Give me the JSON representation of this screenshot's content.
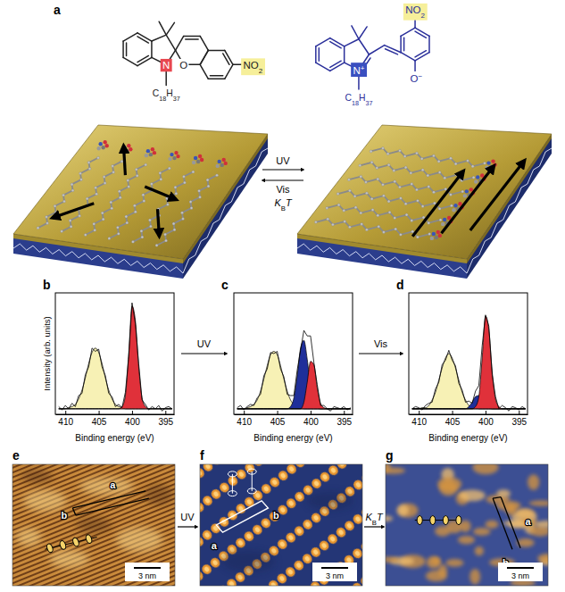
{
  "panel_labels": [
    "a",
    "b",
    "c",
    "d",
    "e",
    "f",
    "g"
  ],
  "scheme": {
    "closed_form": {
      "amine": [
        {
          "text": "N"
        }
      ],
      "oxygen": [
        {
          "text": "O"
        }
      ],
      "chain": [
        {
          "text": "C"
        },
        {
          "text": "18",
          "style": "sub"
        },
        {
          "text": "H"
        },
        {
          "text": "37",
          "style": "sub"
        }
      ],
      "nitro": [
        {
          "text": "NO"
        },
        {
          "text": "2",
          "style": "sub"
        }
      ]
    },
    "open_form": {
      "amine": [
        {
          "text": "N"
        },
        {
          "text": "+",
          "style": "sup"
        }
      ],
      "oxygen": [
        {
          "text": "O"
        },
        {
          "text": "−",
          "style": "sup"
        }
      ],
      "chain": [
        {
          "text": "C"
        },
        {
          "text": "18",
          "style": "sub"
        },
        {
          "text": "H"
        },
        {
          "text": "37",
          "style": "sub"
        }
      ],
      "nitro": [
        {
          "text": "NO"
        },
        {
          "text": "2",
          "style": "sub"
        }
      ]
    },
    "forward": [
      {
        "text": "UV"
      }
    ],
    "backward": [
      [
        {
          "text": "Vis"
        }
      ],
      [
        {
          "text": "K",
          "style": "italic"
        },
        {
          "text": "B",
          "style": "sub"
        },
        {
          "text": "T",
          "style": "italic"
        }
      ]
    ]
  },
  "spectra_steps": [
    [
      {
        "text": "UV"
      }
    ],
    [
      {
        "text": "Vis"
      }
    ]
  ],
  "chart_data": [
    {
      "type": "area",
      "xlabel": "Binding energy (eV)",
      "ylabel": "Intensity (arb. units)",
      "tick_labels": "x",
      "xlim": [
        411.5,
        393.7
      ],
      "xticks": [
        410,
        405,
        400,
        395
      ],
      "ylim": [
        -0.05,
        1.05
      ],
      "x": [
        411,
        410.5,
        410,
        409.5,
        409,
        408.5,
        408,
        407.5,
        407,
        406.5,
        406,
        405.5,
        405,
        404.5,
        404,
        403.5,
        403,
        402.5,
        402,
        401.5,
        401,
        400.5,
        400,
        399.5,
        399,
        398.5,
        398,
        397.5,
        397,
        396.5,
        396,
        395.5,
        395,
        394.5,
        394
      ],
      "series": [
        {
          "type": "area",
          "color": "#f7f1b5",
          "values": [
            0,
            0,
            0,
            0.01,
            0.02,
            0.04,
            0.09,
            0.17,
            0.28,
            0.41,
            0.51,
            0.55,
            0.51,
            0.41,
            0.28,
            0.17,
            0.09,
            0.04,
            0.02,
            0.01,
            0,
            0,
            0,
            0,
            0,
            0,
            0,
            0,
            0,
            0,
            0,
            0,
            0,
            0,
            0
          ]
        },
        {
          "type": "area",
          "color": "#e0313a",
          "values": [
            0,
            0,
            0,
            0,
            0,
            0,
            0,
            0,
            0,
            0,
            0,
            0,
            0,
            0,
            0,
            0,
            0,
            0,
            0,
            0.02,
            0.12,
            0.5,
            0.93,
            0.8,
            0.38,
            0.1,
            0.02,
            0,
            0,
            0,
            0,
            0,
            0,
            0,
            0
          ]
        },
        {
          "type": "line",
          "color": "#000000",
          "values": [
            0.02,
            -0.01,
            0.03,
            0,
            0.05,
            0.02,
            0.12,
            0.14,
            0.31,
            0.38,
            0.55,
            0.52,
            0.54,
            0.38,
            0.3,
            0.14,
            0.11,
            0.02,
            0.04,
            0.01,
            0.15,
            0.47,
            0.96,
            0.77,
            0.41,
            0.08,
            0.04,
            -0.01,
            0.02,
            0,
            0.03,
            -0.02,
            0.01,
            0.02,
            0
          ]
        }
      ]
    },
    {
      "type": "area",
      "xlabel": "Binding energy (eV)",
      "tick_labels": "x",
      "xlim": [
        411.5,
        393.7
      ],
      "xticks": [
        410,
        405,
        400,
        395
      ],
      "ylim": [
        -0.05,
        1.05
      ],
      "x": [
        411,
        410.5,
        410,
        409.5,
        409,
        408.5,
        408,
        407.5,
        407,
        406.5,
        406,
        405.5,
        405,
        404.5,
        404,
        403.5,
        403,
        402.5,
        402,
        401.5,
        401,
        400.5,
        400,
        399.5,
        399,
        398.5,
        398,
        397.5,
        397,
        396.5,
        396,
        395.5,
        395,
        394.5,
        394
      ],
      "series": [
        {
          "type": "area",
          "color": "#f7f1b5",
          "values": [
            0,
            0,
            0,
            0.01,
            0.02,
            0.04,
            0.08,
            0.16,
            0.27,
            0.39,
            0.49,
            0.52,
            0.49,
            0.39,
            0.27,
            0.16,
            0.08,
            0.04,
            0.02,
            0.01,
            0,
            0,
            0,
            0,
            0,
            0,
            0,
            0,
            0,
            0,
            0,
            0,
            0,
            0,
            0
          ]
        },
        {
          "type": "area",
          "color": "#1f2f9a",
          "values": [
            0,
            0,
            0,
            0,
            0,
            0,
            0,
            0,
            0,
            0,
            0,
            0,
            0,
            0,
            0,
            0,
            0.02,
            0.1,
            0.3,
            0.55,
            0.62,
            0.45,
            0.2,
            0.05,
            0.01,
            0,
            0,
            0,
            0,
            0,
            0,
            0,
            0,
            0,
            0
          ]
        },
        {
          "type": "area",
          "color": "#e0313a",
          "values": [
            0,
            0,
            0,
            0,
            0,
            0,
            0,
            0,
            0,
            0,
            0,
            0,
            0,
            0,
            0,
            0,
            0,
            0,
            0,
            0,
            0.06,
            0.24,
            0.43,
            0.4,
            0.19,
            0.05,
            0.01,
            0,
            0,
            0,
            0,
            0,
            0,
            0,
            0
          ]
        },
        {
          "type": "line",
          "color": "#000000",
          "values": [
            0.01,
            0.03,
            -0.01,
            0.02,
            0.04,
            0.03,
            0.1,
            0.13,
            0.3,
            0.36,
            0.51,
            0.5,
            0.52,
            0.36,
            0.29,
            0.13,
            0.12,
            0.12,
            0.35,
            0.53,
            0.71,
            0.66,
            0.66,
            0.42,
            0.22,
            0.03,
            0.03,
            0,
            -0.02,
            0.02,
            0.01,
            0,
            0.02,
            -0.01,
            0.01
          ]
        }
      ]
    },
    {
      "type": "area",
      "xlabel": "Binding energy (eV)",
      "tick_labels": "x",
      "xlim": [
        411.5,
        393.7
      ],
      "xticks": [
        410,
        405,
        400,
        395
      ],
      "ylim": [
        -0.05,
        1.05
      ],
      "x": [
        411,
        410.5,
        410,
        409.5,
        409,
        408.5,
        408,
        407.5,
        407,
        406.5,
        406,
        405.5,
        405,
        404.5,
        404,
        403.5,
        403,
        402.5,
        402,
        401.5,
        401,
        400.5,
        400,
        399.5,
        399,
        398.5,
        398,
        397.5,
        397,
        396.5,
        396,
        395.5,
        395,
        394.5,
        394
      ],
      "series": [
        {
          "type": "area",
          "color": "#f7f1b5",
          "values": [
            0,
            0,
            0,
            0.01,
            0.01,
            0.03,
            0.08,
            0.15,
            0.26,
            0.37,
            0.46,
            0.5,
            0.46,
            0.37,
            0.26,
            0.15,
            0.08,
            0.03,
            0.01,
            0.01,
            0,
            0,
            0,
            0,
            0,
            0,
            0,
            0,
            0,
            0,
            0,
            0,
            0,
            0,
            0
          ]
        },
        {
          "type": "area",
          "color": "#1f2f9a",
          "values": [
            0,
            0,
            0,
            0,
            0,
            0,
            0,
            0,
            0,
            0,
            0,
            0,
            0,
            0,
            0,
            0,
            0,
            0.02,
            0.06,
            0.11,
            0.12,
            0.08,
            0.03,
            0.01,
            0,
            0,
            0,
            0,
            0,
            0,
            0,
            0,
            0,
            0,
            0
          ]
        },
        {
          "type": "area",
          "color": "#e0313a",
          "values": [
            0,
            0,
            0,
            0,
            0,
            0,
            0,
            0,
            0,
            0,
            0,
            0,
            0,
            0,
            0,
            0,
            0,
            0,
            0,
            0.02,
            0.11,
            0.46,
            0.84,
            0.72,
            0.34,
            0.09,
            0.02,
            0,
            0,
            0,
            0,
            0,
            0,
            0,
            0
          ]
        },
        {
          "type": "line",
          "color": "#000000",
          "values": [
            0,
            0.02,
            0.01,
            -0.01,
            0.03,
            0.05,
            0.06,
            0.18,
            0.24,
            0.4,
            0.44,
            0.53,
            0.44,
            0.39,
            0.23,
            0.17,
            0.06,
            0.07,
            0.05,
            0.16,
            0.21,
            0.57,
            0.85,
            0.75,
            0.31,
            0.11,
            0,
            0.03,
            0.01,
            -0.02,
            0.02,
            0.01,
            -0.01,
            0.02,
            0
          ]
        }
      ]
    }
  ],
  "image_steps": [
    [
      {
        "text": "UV"
      }
    ],
    [
      {
        "text": "K",
        "style": "italic"
      },
      {
        "text": "B",
        "style": "sub"
      },
      {
        "text": "T",
        "style": "italic"
      }
    ]
  ],
  "stm_images": [
    {
      "labels": [
        "a",
        "b"
      ],
      "scale_bar": "3 nm"
    },
    {
      "labels": [
        "a",
        "b"
      ],
      "scale_bar": "3 nm"
    },
    {
      "labels": [
        "a",
        "b"
      ],
      "scale_bar": "3 nm"
    }
  ]
}
